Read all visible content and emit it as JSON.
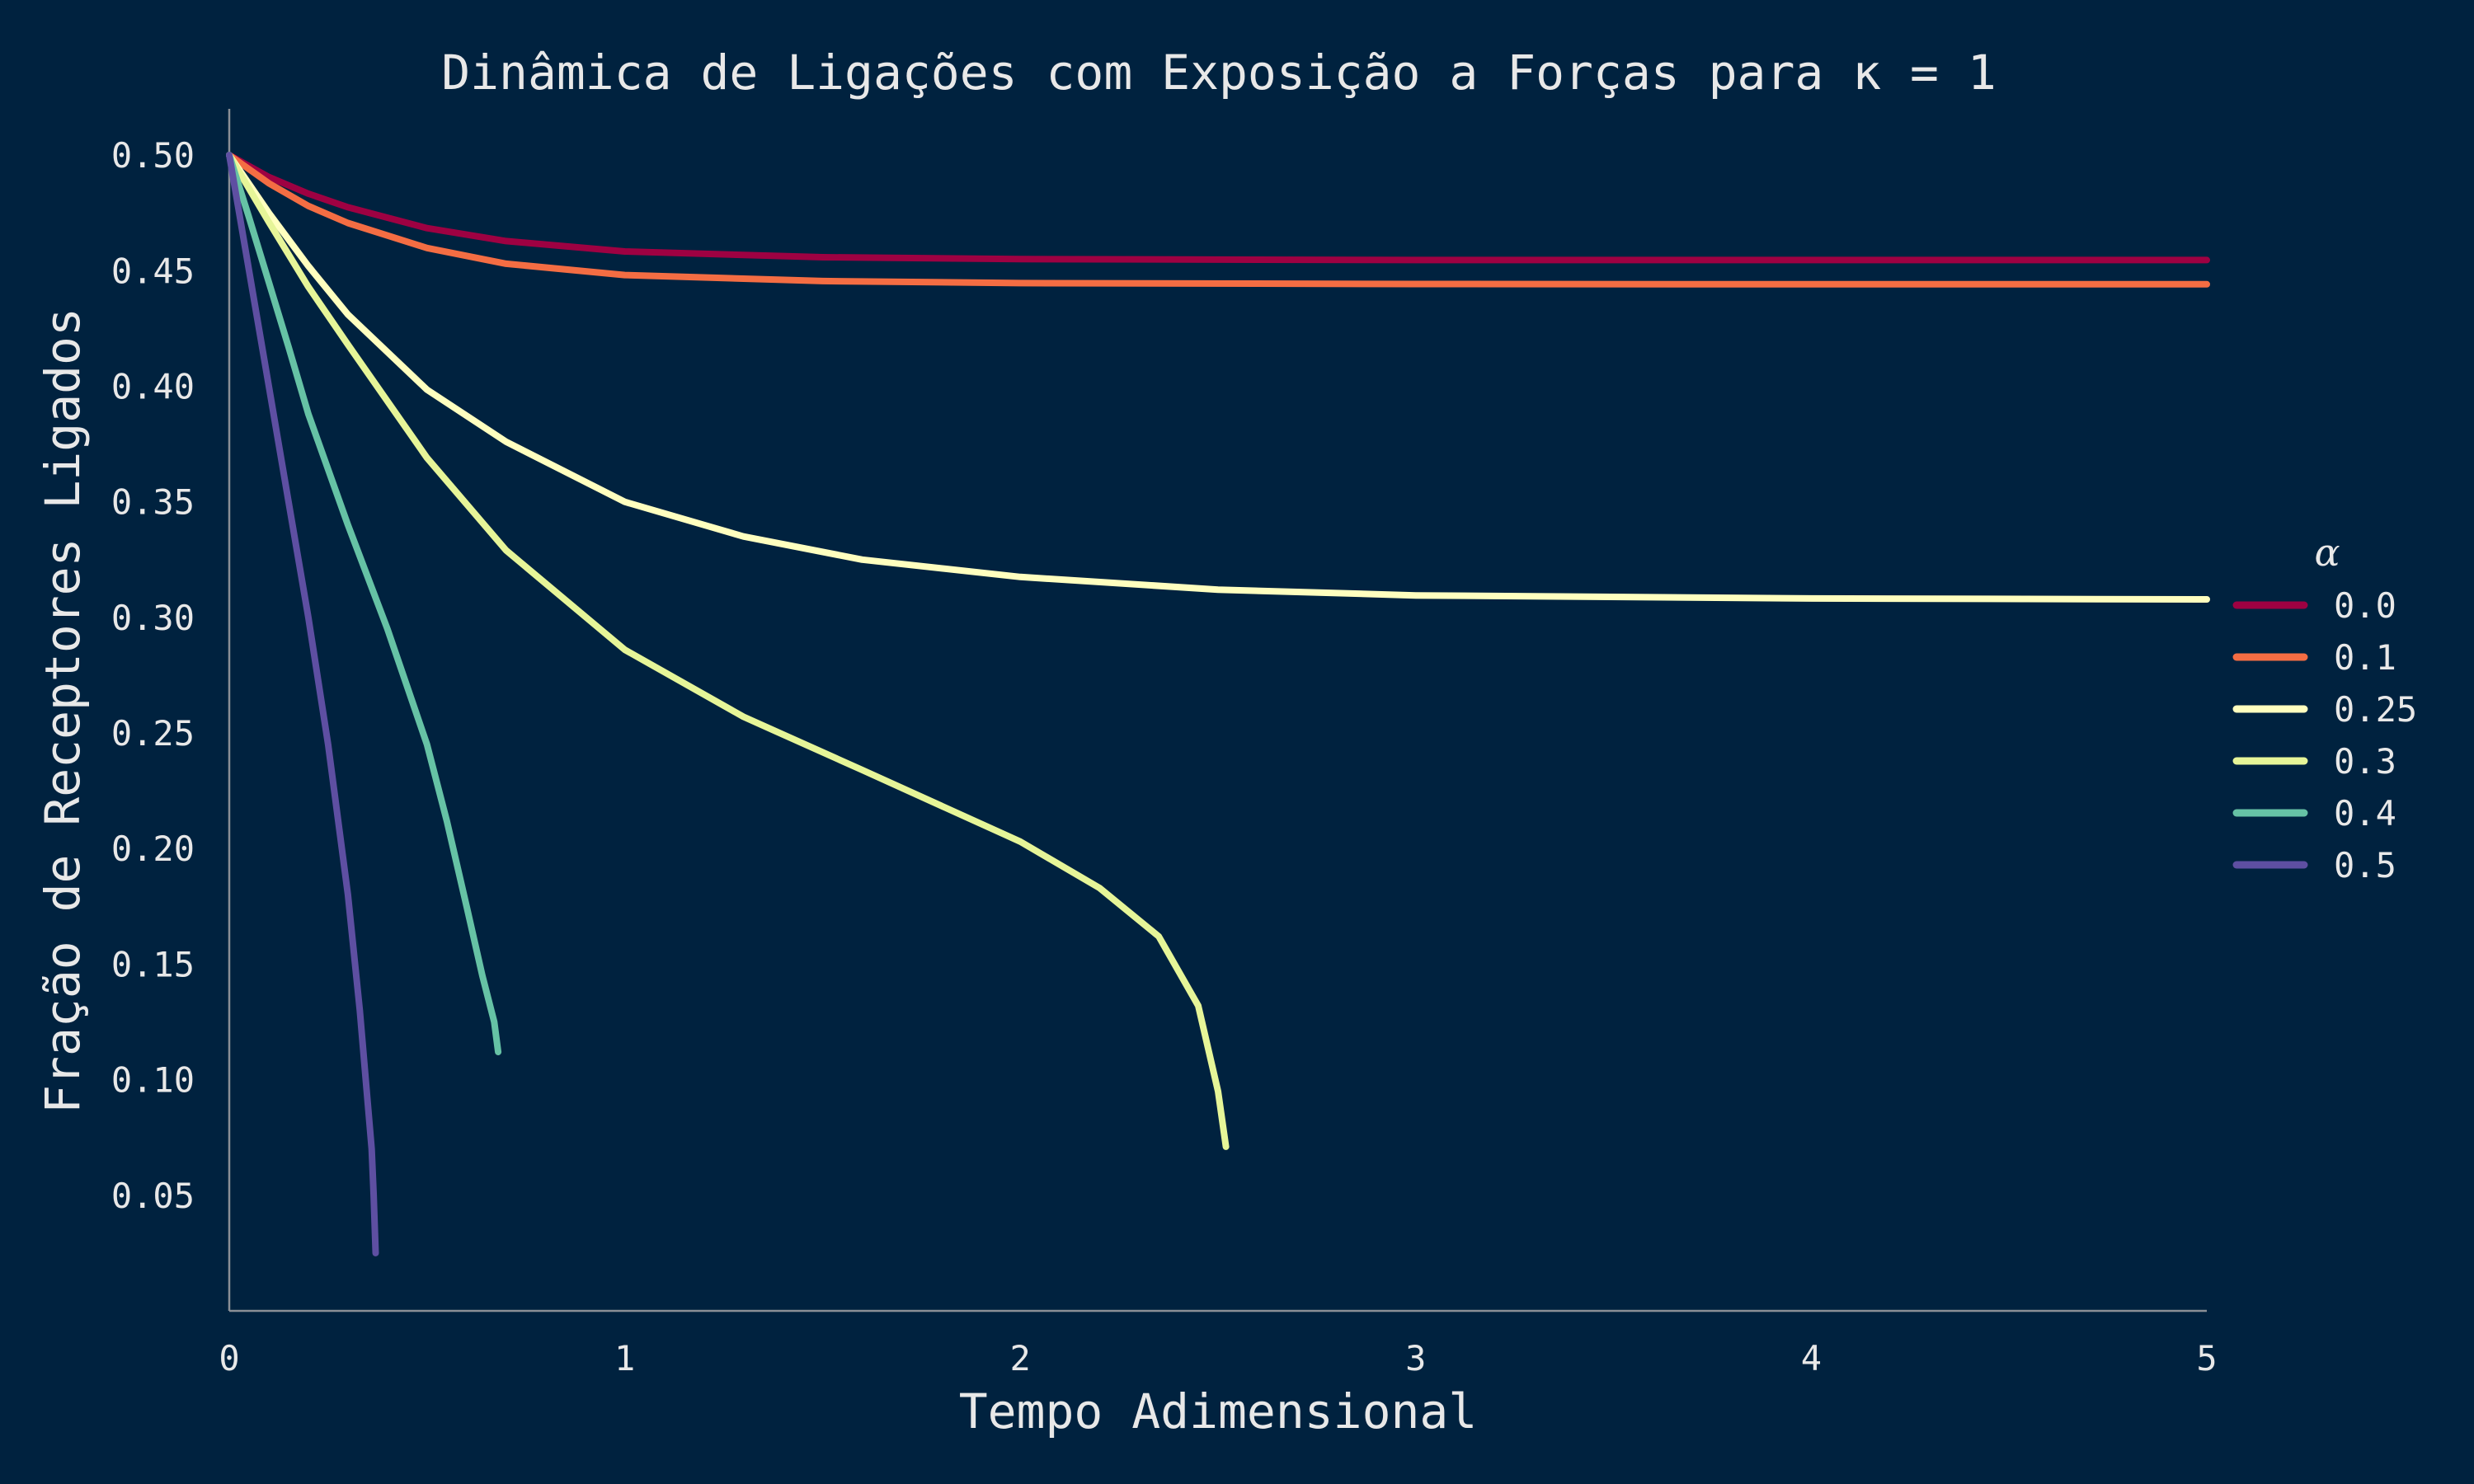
{
  "chart_data": {
    "type": "line",
    "title": "Dinâmica de Ligações com Exposição a Forças para κ = 1",
    "xlabel": "Tempo Adimensional",
    "ylabel": "Fração de Receptores Ligados",
    "xlim": [
      0,
      5
    ],
    "ylim": [
      0,
      0.52
    ],
    "xticks": [
      0,
      1,
      2,
      3,
      4,
      5
    ],
    "xtick_labels": [
      "0",
      "1",
      "2",
      "3",
      "4",
      "5"
    ],
    "yticks": [
      0.05,
      0.1,
      0.15,
      0.2,
      0.25,
      0.3,
      0.35,
      0.4,
      0.45,
      0.5
    ],
    "ytick_labels": [
      "0.05",
      "0.10",
      "0.15",
      "0.20",
      "0.25",
      "0.30",
      "0.35",
      "0.40",
      "0.45",
      "0.50"
    ],
    "grid": false,
    "legend": {
      "title": "α",
      "placement": "center-right"
    },
    "series": [
      {
        "name": "0.0",
        "color": "#9e0142",
        "x": [
          0,
          0.1,
          0.2,
          0.3,
          0.5,
          0.7,
          1.0,
          1.5,
          2.0,
          3.0,
          4.0,
          5.0
        ],
        "y": [
          0.5,
          0.4905,
          0.4833,
          0.4774,
          0.4684,
          0.4628,
          0.4583,
          0.4558,
          0.455,
          0.4546,
          0.4546,
          0.4546
        ]
      },
      {
        "name": "0.1",
        "color": "#f46d43",
        "x": [
          0,
          0.1,
          0.2,
          0.3,
          0.5,
          0.7,
          1.0,
          1.5,
          2.0,
          3.0,
          4.0,
          5.0
        ],
        "y": [
          0.5,
          0.4878,
          0.478,
          0.4706,
          0.4598,
          0.453,
          0.4481,
          0.4455,
          0.4446,
          0.4442,
          0.4441,
          0.4441
        ]
      },
      {
        "name": "0.25",
        "color": "#ffffbf",
        "x": [
          0,
          0.1,
          0.2,
          0.3,
          0.5,
          0.7,
          1.0,
          1.3,
          1.6,
          2.0,
          2.5,
          3.0,
          4.0,
          5.0
        ],
        "y": [
          0.5,
          0.475,
          0.452,
          0.431,
          0.3985,
          0.376,
          0.35,
          0.335,
          0.325,
          0.3175,
          0.312,
          0.3095,
          0.3082,
          0.3078
        ]
      },
      {
        "name": "0.3",
        "color": "#e6f598",
        "x": [
          0,
          0.1,
          0.2,
          0.3,
          0.5,
          0.7,
          1.0,
          1.3,
          1.6,
          2.0,
          2.2,
          2.35,
          2.45,
          2.5,
          2.52
        ],
        "y": [
          0.5,
          0.471,
          0.443,
          0.418,
          0.369,
          0.329,
          0.286,
          0.257,
          0.234,
          0.203,
          0.183,
          0.162,
          0.132,
          0.095,
          0.071
        ]
      },
      {
        "name": "0.4",
        "color": "#66c2a5",
        "x": [
          0,
          0.05,
          0.1,
          0.15,
          0.2,
          0.3,
          0.4,
          0.5,
          0.55,
          0.6,
          0.64,
          0.67,
          0.68
        ],
        "y": [
          0.5,
          0.473,
          0.445,
          0.417,
          0.388,
          0.34,
          0.295,
          0.245,
          0.212,
          0.175,
          0.145,
          0.125,
          0.112
        ]
      },
      {
        "name": "0.5",
        "color": "#5e4fa2",
        "x": [
          0,
          0.05,
          0.1,
          0.15,
          0.2,
          0.25,
          0.3,
          0.33,
          0.35,
          0.36,
          0.365,
          0.37
        ],
        "y": [
          0.5,
          0.45,
          0.4,
          0.35,
          0.3,
          0.245,
          0.18,
          0.13,
          0.09,
          0.07,
          0.05,
          0.025
        ]
      }
    ]
  }
}
